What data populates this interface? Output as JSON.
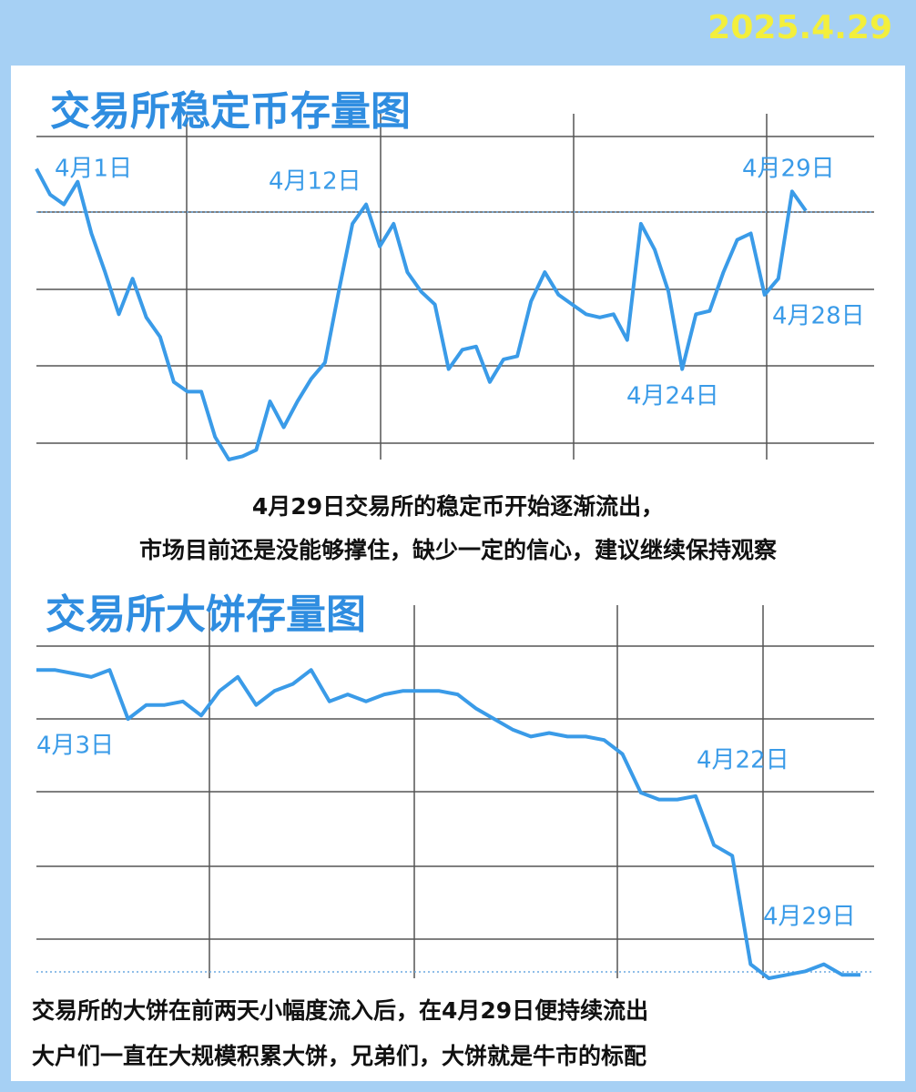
{
  "date": "2025.4.29",
  "chart_data": [
    {
      "type": "line",
      "title": "交易所稳定币存量图",
      "color": "#3a9be8",
      "ylim": [
        0,
        100
      ],
      "grid": true,
      "values": [
        90,
        82,
        79,
        86,
        70,
        58,
        45,
        56,
        44,
        38,
        24,
        21,
        21,
        7,
        0,
        1,
        3,
        18,
        10,
        18,
        25,
        30,
        52,
        73,
        79,
        66,
        73,
        58,
        52,
        48,
        28,
        34,
        35,
        24,
        31,
        32,
        49,
        58,
        51,
        48,
        45,
        44,
        45,
        37,
        73,
        65,
        52,
        28,
        45,
        46,
        58,
        68,
        70,
        51,
        56,
        83,
        77
      ],
      "annotations": [
        "4月1日",
        "4月12日",
        "4月29日",
        "4月28日",
        "4月24日"
      ],
      "caption": [
        "4月29日交易所的稳定币开始逐渐流出，",
        "市场目前还是没能够撑住，缺少一定的信心，建议继续保持观察"
      ]
    },
    {
      "type": "line",
      "title": "交易所大饼存量图",
      "color": "#3a9be8",
      "ylim": [
        0,
        100
      ],
      "grid": true,
      "values": [
        88,
        88,
        87,
        86,
        88,
        74,
        78,
        78,
        79,
        75,
        82,
        86,
        78,
        82,
        84,
        88,
        79,
        81,
        79,
        81,
        82,
        82,
        82,
        81,
        77,
        74,
        71,
        69,
        70,
        69,
        69,
        68,
        64,
        53,
        51,
        51,
        52,
        38,
        35,
        4,
        0,
        1,
        2,
        4,
        1,
        1
      ],
      "annotations": [
        "4月3日",
        "4月22日",
        "4月29日"
      ],
      "caption": [
        "交易所的大饼在前两天小幅度流入后，在4月29日便持续流出",
        "大户们一直在大规模积累大饼，兄弟们，大饼就是牛市的标配"
      ]
    }
  ]
}
